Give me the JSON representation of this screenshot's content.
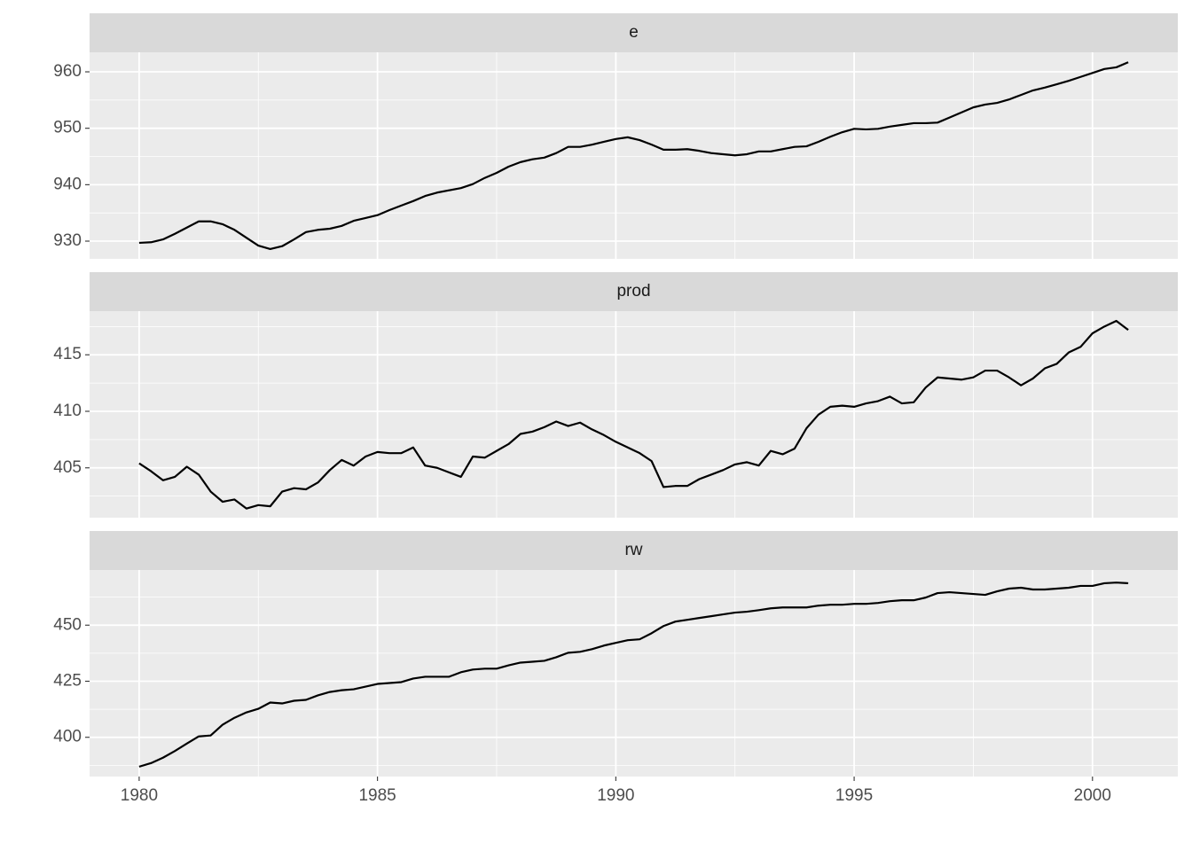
{
  "chart_data": {
    "type": "line",
    "facets": true,
    "grid": true,
    "x": [
      1980,
      1980.25,
      1980.5,
      1980.75,
      1981,
      1981.25,
      1981.5,
      1981.75,
      1982,
      1982.25,
      1982.5,
      1982.75,
      1983,
      1983.25,
      1983.5,
      1983.75,
      1984,
      1984.25,
      1984.5,
      1984.75,
      1985,
      1985.25,
      1985.5,
      1985.75,
      1986,
      1986.25,
      1986.5,
      1986.75,
      1987,
      1987.25,
      1987.5,
      1987.75,
      1988,
      1988.25,
      1988.5,
      1988.75,
      1989,
      1989.25,
      1989.5,
      1989.75,
      1990,
      1990.25,
      1990.5,
      1990.75,
      1991,
      1991.25,
      1991.5,
      1991.75,
      1992,
      1992.25,
      1992.5,
      1992.75,
      1993,
      1993.25,
      1993.5,
      1993.75,
      1994,
      1994.25,
      1994.5,
      1994.75,
      1995,
      1995.25,
      1995.5,
      1995.75,
      1996,
      1996.25,
      1996.5,
      1996.75,
      1997,
      1997.25,
      1997.5,
      1997.75,
      1998,
      1998.25,
      1998.5,
      1998.75,
      1999,
      1999.25,
      1999.5,
      1999.75,
      2000,
      2000.25,
      2000.5,
      2000.75
    ],
    "xlim": [
      1978.96,
      2001.79
    ],
    "xticks": [
      1980,
      1985,
      1990,
      1995,
      2000
    ],
    "series": [
      {
        "name": "e",
        "color": "#000000",
        "ylim": [
          926.86,
          963.46
        ],
        "yticks": [
          930,
          940,
          950,
          960
        ],
        "values": [
          929.7,
          929.8,
          930.3,
          931.3,
          932.4,
          933.5,
          933.5,
          933.0,
          932.0,
          930.6,
          929.2,
          928.6,
          929.1,
          930.3,
          931.6,
          932.0,
          932.2,
          932.7,
          933.6,
          934.1,
          934.6,
          935.5,
          936.3,
          937.1,
          938.0,
          938.6,
          939.0,
          939.4,
          940.1,
          941.2,
          942.1,
          943.2,
          944.0,
          944.5,
          944.8,
          945.6,
          946.7,
          946.7,
          947.1,
          947.6,
          948.1,
          948.4,
          947.9,
          947.1,
          946.2,
          946.2,
          946.3,
          946.0,
          945.6,
          945.4,
          945.2,
          945.4,
          945.9,
          945.9,
          946.3,
          946.7,
          946.8,
          947.6,
          948.5,
          949.3,
          949.9,
          949.8,
          949.9,
          950.3,
          950.6,
          950.9,
          950.9,
          951.0,
          951.9,
          952.8,
          953.7,
          954.2,
          954.5,
          955.1,
          955.9,
          956.7,
          957.2,
          957.8,
          958.4,
          959.1,
          959.8,
          960.5,
          960.8,
          961.7
        ]
      },
      {
        "name": "prod",
        "color": "#000000",
        "ylim": [
          400.59,
          418.86
        ],
        "yticks": [
          405,
          410,
          415
        ],
        "values": [
          405.4,
          404.7,
          403.9,
          404.2,
          405.1,
          404.4,
          402.9,
          402.0,
          402.2,
          401.4,
          401.7,
          401.6,
          402.9,
          403.2,
          403.1,
          403.7,
          404.8,
          405.7,
          405.2,
          406.0,
          406.4,
          406.3,
          406.3,
          406.8,
          405.2,
          405.0,
          404.6,
          404.2,
          406.0,
          405.9,
          406.5,
          407.1,
          408.0,
          408.2,
          408.6,
          409.1,
          408.7,
          409.0,
          408.4,
          407.9,
          407.3,
          406.8,
          406.3,
          405.6,
          403.3,
          403.4,
          403.4,
          404.0,
          404.4,
          404.8,
          405.3,
          405.5,
          405.2,
          406.5,
          406.2,
          406.7,
          408.5,
          409.7,
          410.4,
          410.5,
          410.4,
          410.7,
          410.9,
          411.3,
          410.7,
          410.8,
          412.1,
          413.0,
          412.9,
          412.8,
          413.0,
          413.6,
          413.6,
          413.0,
          412.3,
          412.9,
          413.8,
          414.2,
          415.2,
          415.7,
          416.9,
          417.5,
          418.0,
          417.2
        ]
      },
      {
        "name": "rw",
        "color": "#000000",
        "ylim": [
          382.5,
          474.6
        ],
        "yticks": [
          400,
          425,
          450
        ],
        "values": [
          386.9,
          388.5,
          390.9,
          393.9,
          397.2,
          400.4,
          400.8,
          405.6,
          408.7,
          411.1,
          412.7,
          415.5,
          415.1,
          416.3,
          416.7,
          418.7,
          420.2,
          421.0,
          421.4,
          422.6,
          423.8,
          424.2,
          424.6,
          426.2,
          427.0,
          427.0,
          427.0,
          429.0,
          430.2,
          430.6,
          430.6,
          432.1,
          433.3,
          433.7,
          434.1,
          435.7,
          437.7,
          438.1,
          439.3,
          440.9,
          442.1,
          443.3,
          443.7,
          446.4,
          449.6,
          451.6,
          452.4,
          453.2,
          454.0,
          454.8,
          455.6,
          456.0,
          456.7,
          457.5,
          457.9,
          457.9,
          457.9,
          458.7,
          459.1,
          459.1,
          459.5,
          459.5,
          459.9,
          460.7,
          461.1,
          461.1,
          462.3,
          464.3,
          464.7,
          464.3,
          463.9,
          463.5,
          465.1,
          466.3,
          466.7,
          465.9,
          465.9,
          466.3,
          466.7,
          467.5,
          467.5,
          468.7,
          469.0,
          468.7
        ]
      }
    ]
  }
}
